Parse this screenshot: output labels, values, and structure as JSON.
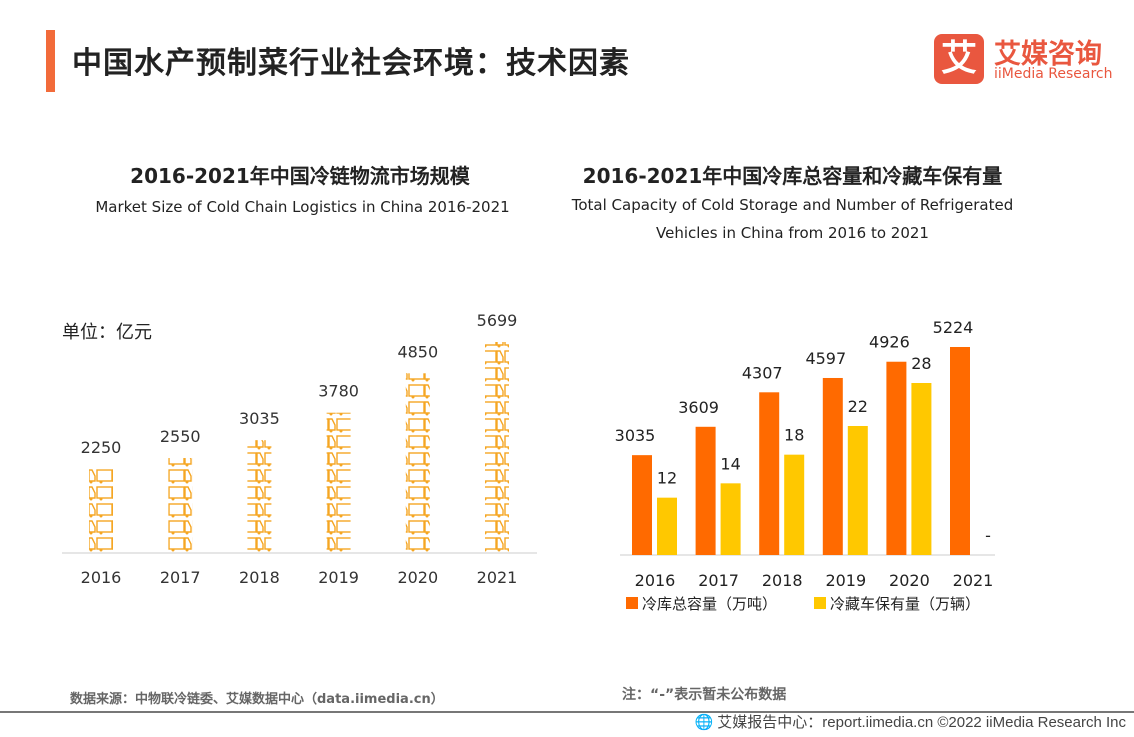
{
  "header": {
    "title": "中国水产预制菜行业社会环境：技术因素",
    "logo_mark": "艾",
    "logo_cn": "艾媒咨询",
    "logo_en": "iiMedia Research"
  },
  "left": {
    "title_cn": "2016-2021年中国冷链物流市场规模",
    "title_en": "Market Size of Cold Chain Logistics in China 2016-2021",
    "unit": "单位：亿元",
    "source": "数据来源：中物联冷链委、艾媒数据中心（data.iimedia.cn）"
  },
  "right": {
    "title_cn": "2016-2021年中国冷库总容量和冷藏车保有量",
    "title_en_1": "Total Capacity of Cold Storage and Number of Refrigerated",
    "title_en_2": "Vehicles in China from 2016 to 2021",
    "note": "注：“-”表示暂未公布数据"
  },
  "footer": {
    "text": "艾媒报告中心：report.iimedia.cn   ©2022  iiMedia Research  Inc",
    "icon": "globe-icon"
  },
  "chart_data": [
    {
      "type": "bar",
      "mark": "truck-icon pictogram",
      "categories": [
        "2016",
        "2017",
        "2018",
        "2019",
        "2020",
        "2021"
      ],
      "values": [
        2250,
        2550,
        3035,
        3780,
        4850,
        5699
      ],
      "ylabel": "单位：亿元",
      "ylim": [
        0,
        5699
      ],
      "grid": false,
      "color": "#f5a623"
    },
    {
      "type": "bar",
      "categories": [
        "2016",
        "2017",
        "2018",
        "2019",
        "2020",
        "2021"
      ],
      "series": [
        {
          "name": "冷库总容量（万吨）",
          "values": [
            3035,
            3609,
            4307,
            4597,
            4926,
            5224
          ],
          "color": "#ff6a00",
          "ylim": [
            1014,
            5224
          ]
        },
        {
          "name": "冷藏车保有量（万辆）",
          "values": [
            12,
            14,
            18,
            22,
            28,
            null
          ],
          "labels": [
            "12",
            "14",
            "18",
            "22",
            "28",
            "-"
          ],
          "color": "#ffc800",
          "ylim": [
            4,
            28
          ]
        }
      ],
      "legend": "bottom",
      "grid": false
    }
  ]
}
